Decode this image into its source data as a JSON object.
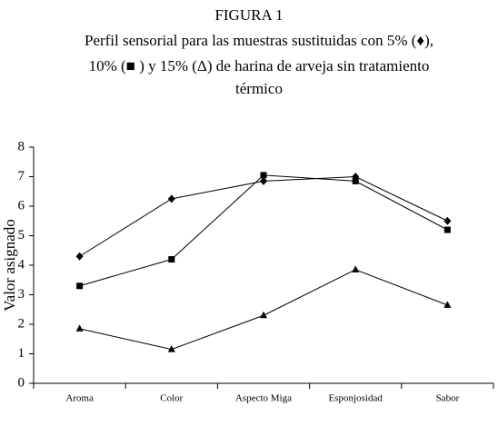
{
  "chart_data": {
    "type": "line",
    "title": "FIGURA 1",
    "subtitle_lines": [
      "Perfil sensorial para las muestras sustituidas con 5% (♦), ",
      "10% (■ ) y 15% (Δ) de harina de arveja sin tratamiento",
      "térmico"
    ],
    "y_label": "Valor asignado",
    "categories": [
      "Aroma",
      "Color",
      "Aspecto Miga",
      "Esponjosidad",
      "Sabor"
    ],
    "series": [
      {
        "color": "#000000",
        "marker": "diamond",
        "values": [
          4.3,
          6.25,
          6.85,
          7.0,
          5.5
        ]
      },
      {
        "color": "#000000",
        "marker": "square",
        "values": [
          3.3,
          4.2,
          7.05,
          6.85,
          5.2
        ]
      },
      {
        "color": "#000000",
        "marker": "triangle",
        "values": [
          1.85,
          1.15,
          2.3,
          3.85,
          2.65
        ]
      }
    ],
    "ylim": [
      0,
      8
    ],
    "yticks": [
      0,
      1,
      2,
      3,
      4,
      5,
      6,
      7,
      8
    ],
    "grid": false
  }
}
